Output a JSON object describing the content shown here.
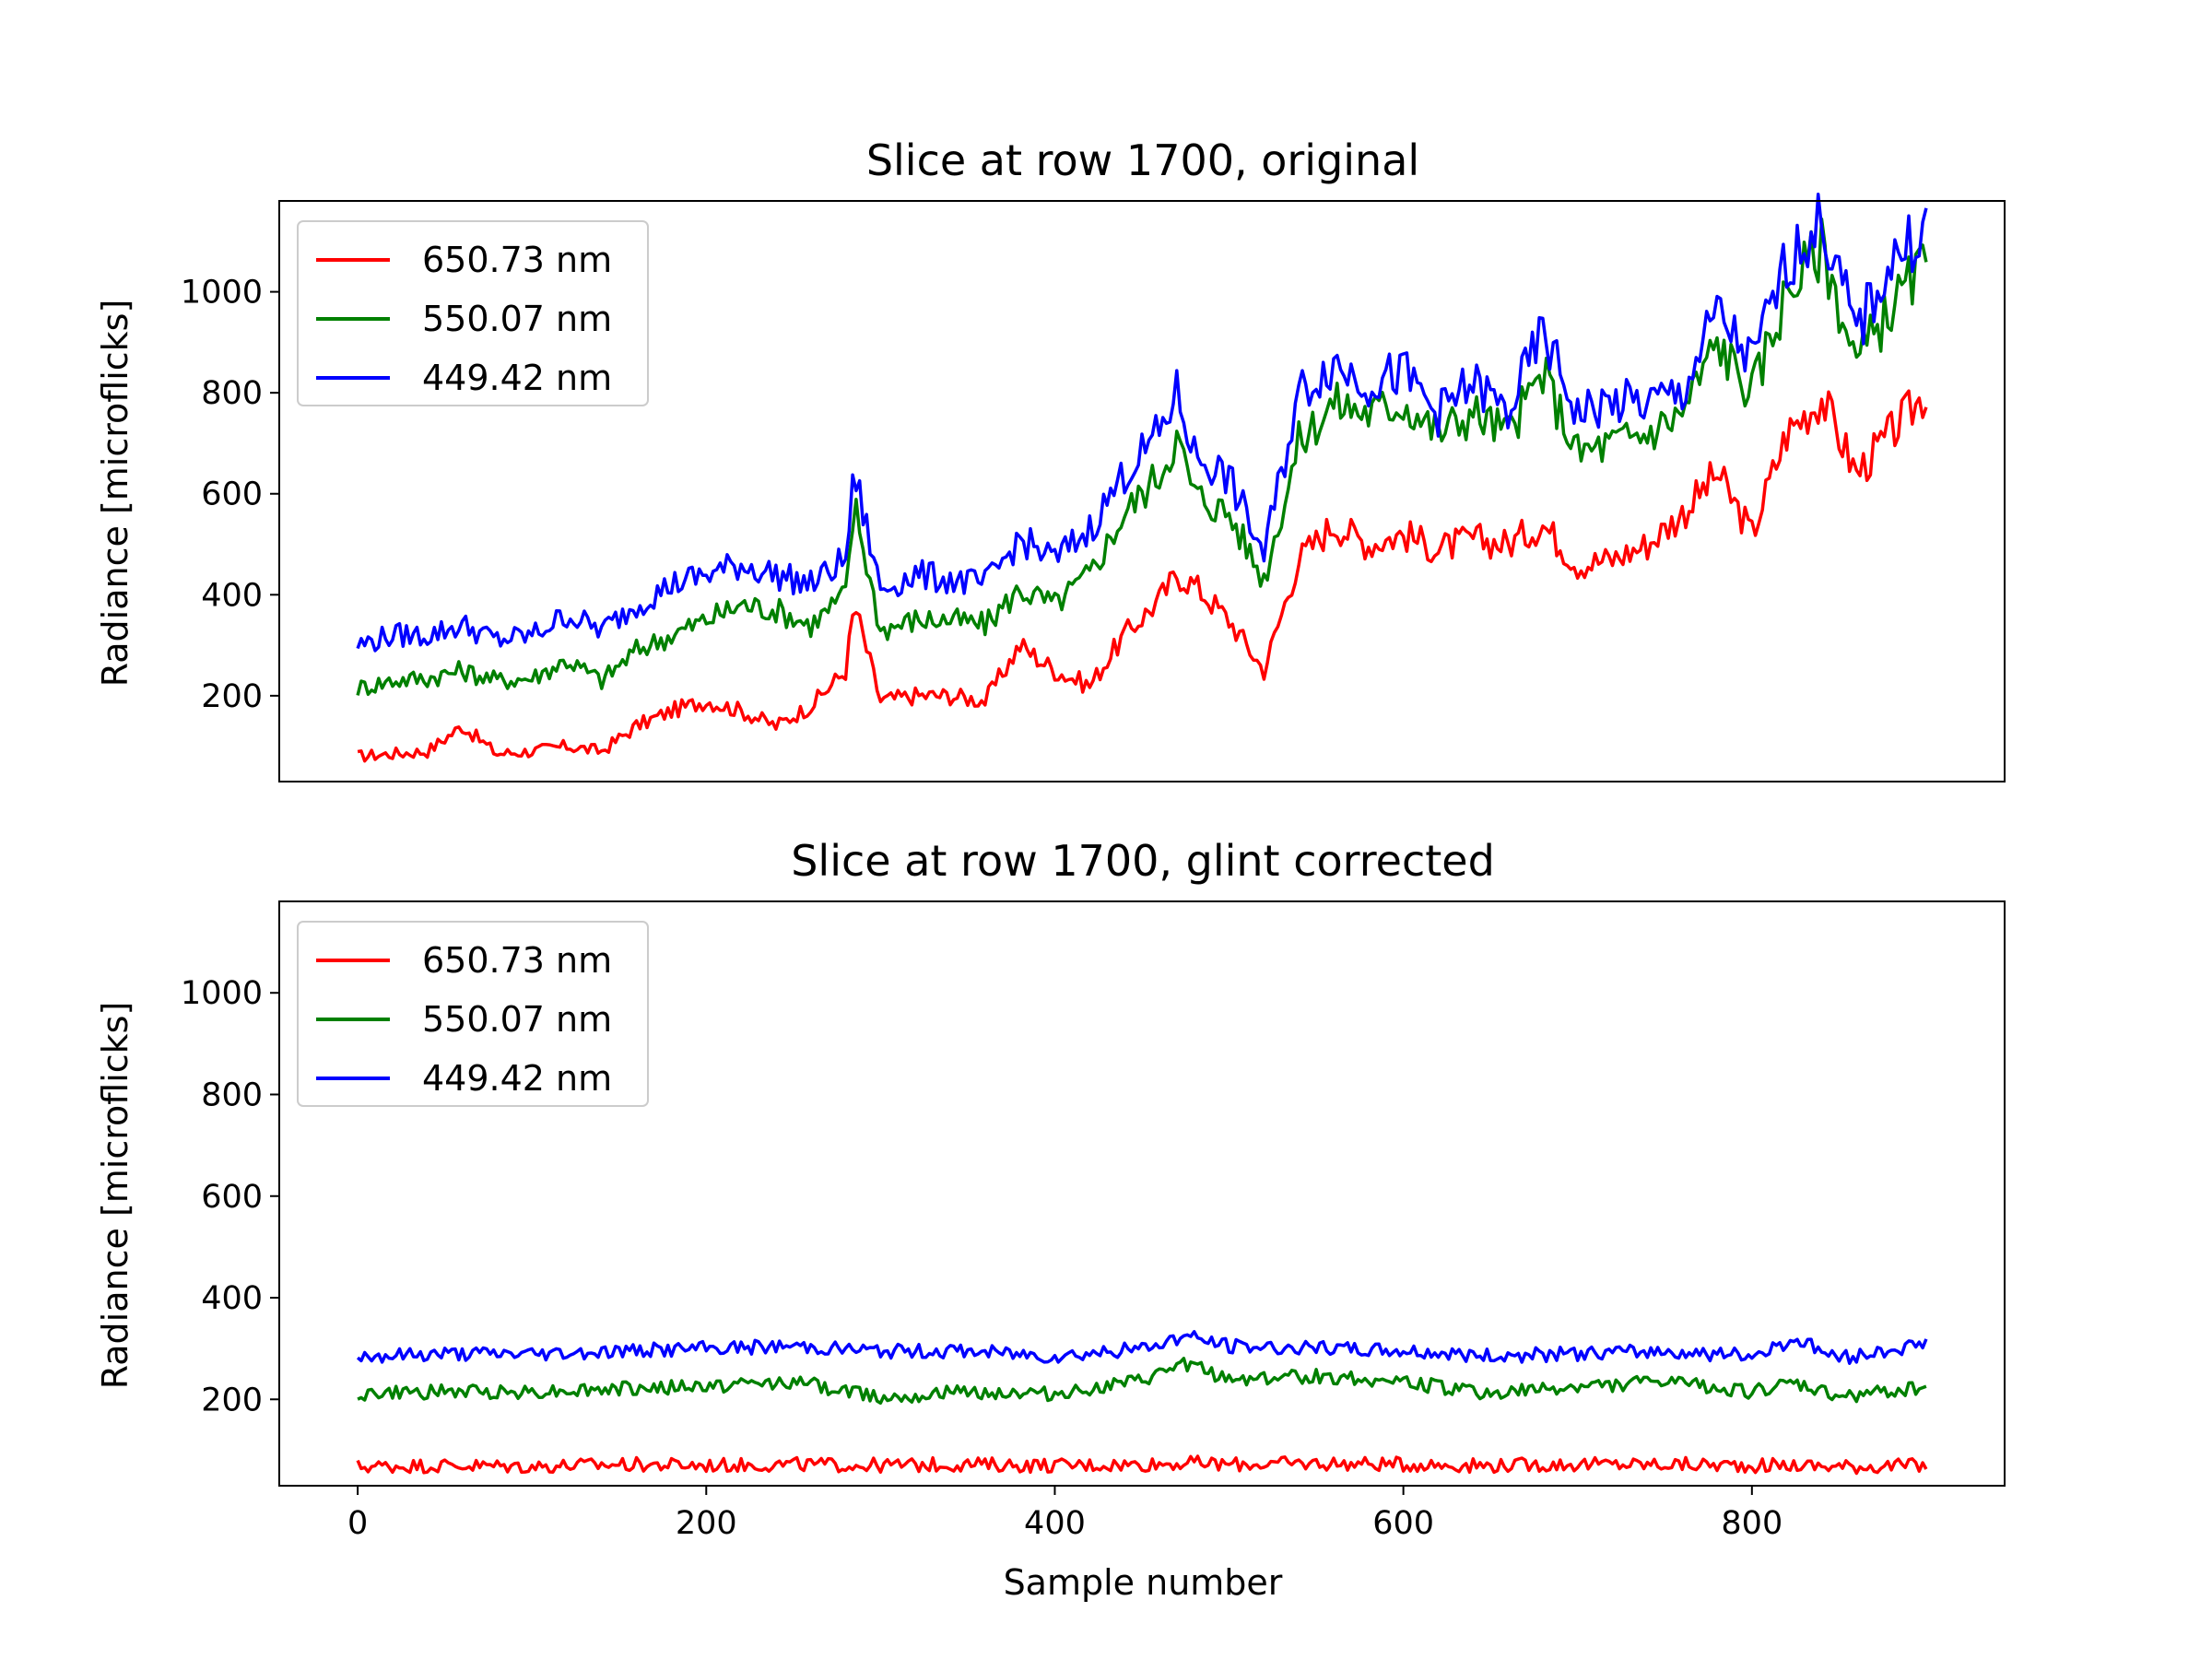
{
  "chart_data": [
    {
      "type": "line",
      "title": "Slice at row 1700, original",
      "xlabel": "",
      "ylabel": "Radiance [microflicks]",
      "xlim": [
        -45,
        945
      ],
      "ylim": [
        30,
        1180
      ],
      "yticks": [
        200,
        400,
        600,
        800,
        1000
      ],
      "xticks": [],
      "legend_position": "top-left",
      "x": [
        0,
        20,
        40,
        60,
        80,
        100,
        120,
        140,
        160,
        180,
        200,
        220,
        240,
        260,
        280,
        285,
        300,
        320,
        340,
        360,
        380,
        400,
        420,
        440,
        460,
        470,
        480,
        500,
        520,
        540,
        560,
        580,
        600,
        620,
        640,
        660,
        680,
        700,
        720,
        740,
        760,
        780,
        800,
        820,
        840,
        860,
        880,
        900
      ],
      "series": [
        {
          "name": "650.73 nm",
          "color": "#ff0000",
          "values": [
            80,
            85,
            90,
            140,
            85,
            90,
            100,
            90,
            140,
            170,
            190,
            170,
            140,
            180,
            250,
            380,
            190,
            200,
            200,
            190,
            300,
            250,
            220,
            320,
            390,
            440,
            420,
            350,
            250,
            470,
            540,
            500,
            520,
            490,
            510,
            500,
            540,
            460,
            470,
            500,
            560,
            640,
            520,
            720,
            790,
            640,
            720,
            800
          ]
        },
        {
          "name": "550.07 nm",
          "color": "#008000",
          "values": [
            215,
            230,
            235,
            250,
            230,
            235,
            270,
            230,
            290,
            320,
            350,
            380,
            370,
            340,
            400,
            580,
            330,
            350,
            350,
            340,
            410,
            380,
            440,
            560,
            640,
            710,
            600,
            560,
            430,
            700,
            780,
            760,
            780,
            720,
            760,
            720,
            840,
            680,
            700,
            720,
            760,
            900,
            800,
            1000,
            1090,
            860,
            970,
            1060
          ]
        },
        {
          "name": "449.42 nm",
          "color": "#0000ff",
          "values": [
            300,
            320,
            320,
            340,
            310,
            320,
            360,
            330,
            380,
            420,
            440,
            460,
            440,
            420,
            470,
            640,
            410,
            440,
            430,
            420,
            510,
            470,
            530,
            640,
            720,
            800,
            680,
            630,
            480,
            800,
            860,
            820,
            840,
            760,
            820,
            760,
            920,
            760,
            780,
            780,
            800,
            960,
            860,
            1060,
            1140,
            920,
            1060,
            1130
          ]
        }
      ]
    },
    {
      "type": "line",
      "title": "Slice at row 1700, glint corrected",
      "xlabel": "Sample number",
      "ylabel": "Radiance [microflicks]",
      "xlim": [
        -45,
        945
      ],
      "ylim": [
        30,
        1180
      ],
      "yticks": [
        200,
        400,
        600,
        800,
        1000
      ],
      "xticks": [
        0,
        200,
        400,
        600,
        800
      ],
      "legend_position": "top-left",
      "x": [
        0,
        50,
        100,
        150,
        200,
        250,
        300,
        350,
        400,
        450,
        475,
        500,
        550,
        600,
        650,
        700,
        750,
        800,
        825,
        850,
        900
      ],
      "series": [
        {
          "name": "650.73 nm",
          "color": "#ff0000",
          "values": [
            68,
            70,
            68,
            72,
            70,
            72,
            70,
            72,
            70,
            72,
            75,
            72,
            74,
            72,
            70,
            72,
            72,
            70,
            70,
            68,
            70
          ]
        },
        {
          "name": "550.07 nm",
          "color": "#008000",
          "values": [
            210,
            215,
            215,
            220,
            225,
            235,
            205,
            215,
            210,
            235,
            270,
            240,
            245,
            235,
            210,
            225,
            235,
            215,
            230,
            205,
            225
          ]
        },
        {
          "name": "449.42 nm",
          "color": "#0000ff",
          "values": [
            285,
            290,
            290,
            295,
            300,
            305,
            295,
            295,
            285,
            300,
            325,
            305,
            300,
            295,
            285,
            290,
            295,
            285,
            320,
            280,
            310
          ]
        }
      ]
    }
  ]
}
